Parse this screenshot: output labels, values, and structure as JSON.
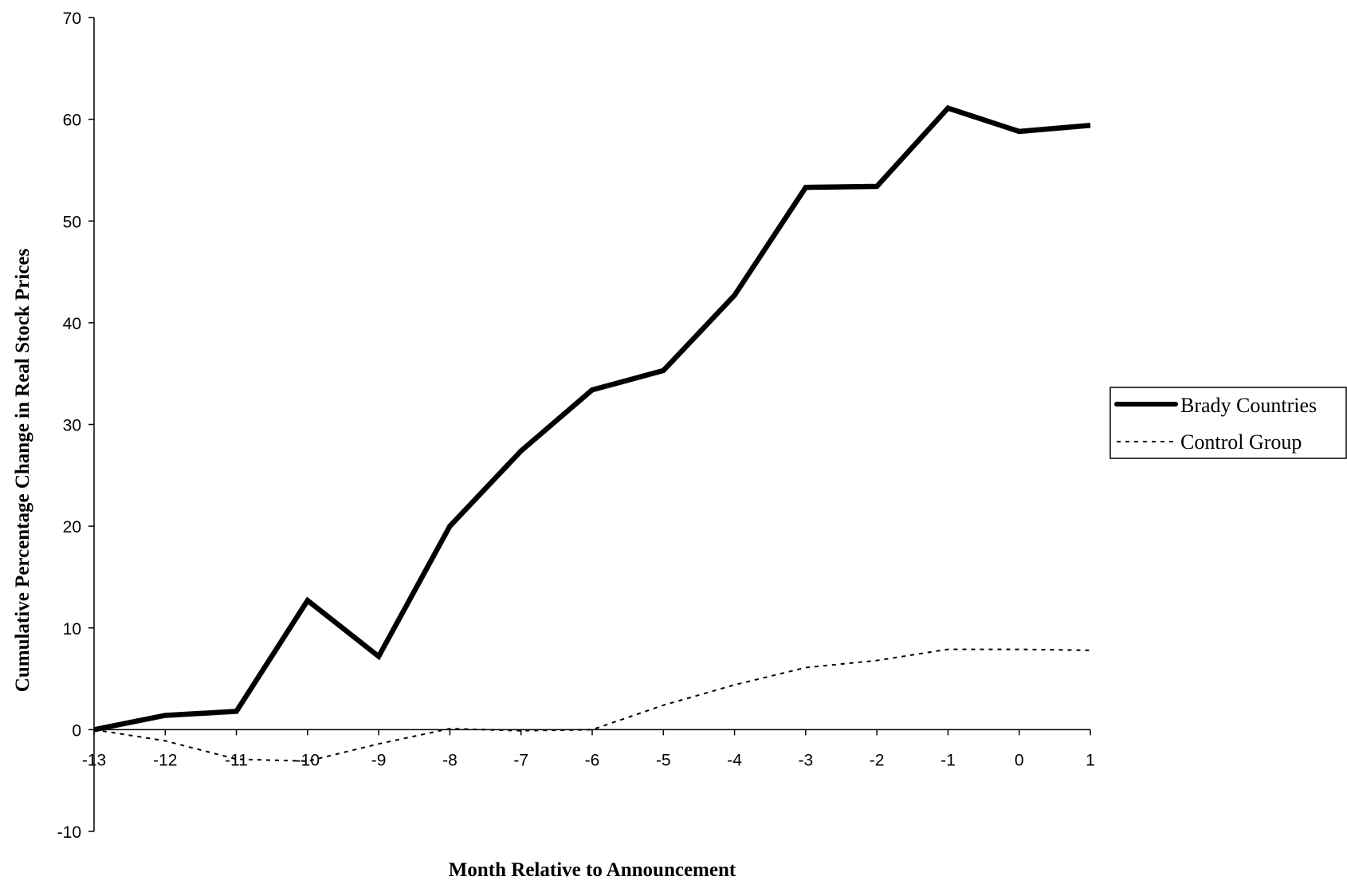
{
  "chart_data": {
    "type": "line",
    "title": "",
    "xlabel": "Month Relative to Announcement",
    "ylabel": "Cumulative Percentage Change in Real Stock Prices",
    "x": [
      -13,
      -12,
      -11,
      -10,
      -9,
      -8,
      -7,
      -6,
      -5,
      -4,
      -3,
      -2,
      -1,
      0,
      1
    ],
    "x_tick_labels": [
      "-13",
      "-12",
      "-11",
      "-10",
      "-9",
      "-8",
      "-7",
      "-6",
      "-5",
      "-4",
      "-3",
      "-2",
      "-1",
      "0",
      "1"
    ],
    "y_ticks": [
      -10,
      0,
      10,
      20,
      30,
      40,
      50,
      60,
      70
    ],
    "y_tick_labels": [
      "-10",
      "0",
      "10",
      "20",
      "30",
      "40",
      "50",
      "60",
      "70"
    ],
    "ylim": [
      -10,
      70
    ],
    "grid": false,
    "legend_position": "right",
    "series": [
      {
        "name": "Brady Countries",
        "style": "solid-thick",
        "color": "#000000",
        "values": [
          0,
          1.4,
          1.8,
          12.7,
          7.2,
          20,
          27.4,
          33.4,
          35.3,
          42.7,
          53.3,
          53.4,
          61.1,
          58.8,
          59.4
        ]
      },
      {
        "name": "Control Group",
        "style": "dotted",
        "color": "#000000",
        "values": [
          0,
          -1.1,
          -2.9,
          -3.1,
          -1.4,
          0.1,
          -0.1,
          0,
          2.4,
          4.4,
          6.1,
          6.8,
          7.9,
          7.9,
          7.8
        ]
      }
    ]
  }
}
